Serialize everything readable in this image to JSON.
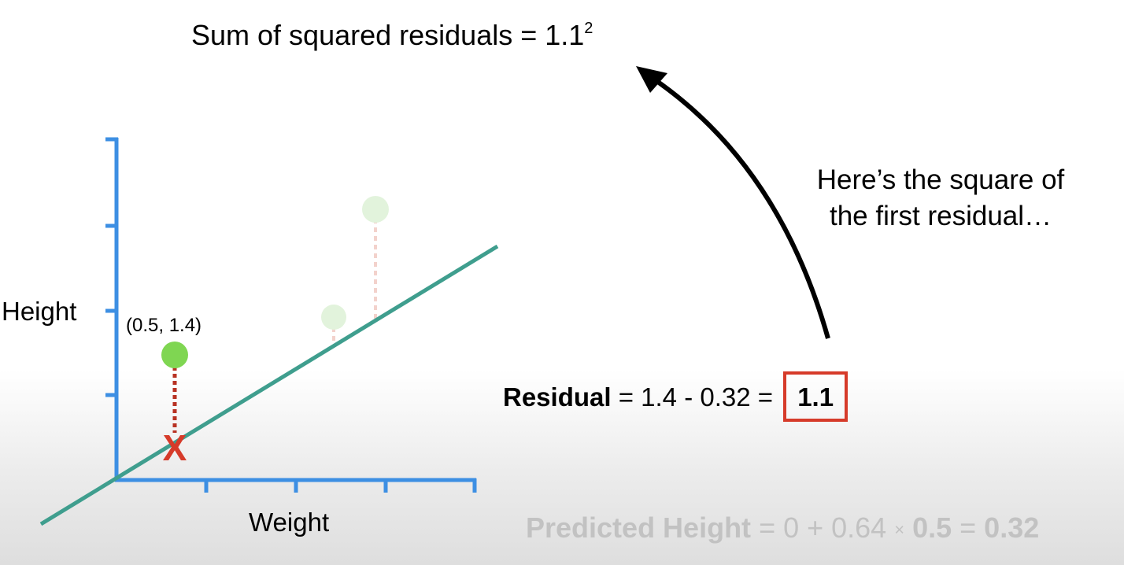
{
  "sum_equation": {
    "text": "Sum of squared residuals = 1.1",
    "exponent": "2"
  },
  "note": {
    "line1": "Here’s the square of",
    "line2": "the first residual…"
  },
  "axes": {
    "ylabel": "Height",
    "xlabel": "Weight"
  },
  "point_label": "(0.5, 1.4)",
  "residual_equation": {
    "term_label": "Residual",
    "expression": " = 1.4 - 0.32 = ",
    "result": "1.1"
  },
  "predicted_equation": {
    "term_label": "Predicted Height",
    "expr_a": " = 0 + 0.64 ",
    "times": "×",
    "x_value": "0.5",
    "expr_b": " = ",
    "result": "0.32"
  },
  "predicted_marker": "X",
  "colors": {
    "axis": "#3d8fe3",
    "fit_line": "#3f9e8e",
    "point_active": "#7fd652",
    "point_faded": "#e2f3dc",
    "residual_line": "#b83223",
    "residual_faded": "#f3d2cc",
    "box": "#d63b2a"
  }
}
